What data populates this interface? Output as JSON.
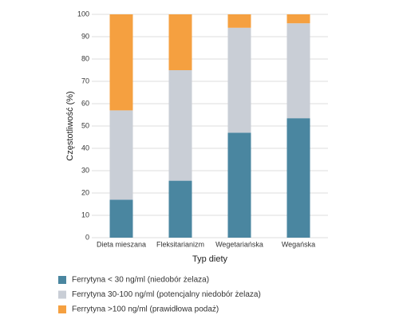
{
  "chart_data": {
    "type": "stacked-bar",
    "categories": [
      "Dieta mieszana",
      "Fleksitarianizm",
      "Wegetariańska",
      "Wegańska"
    ],
    "series": [
      {
        "name": "Ferrytyna < 30 ng/ml (niedobór żelaza)",
        "color": "#4a86a0",
        "values": [
          17,
          25.5,
          47,
          53.5
        ]
      },
      {
        "name": "Ferrytyna 30-100 ng/ml (potencjalny niedobór żelaza)",
        "color": "#c9ced6",
        "values": [
          40,
          49.5,
          47,
          42.5
        ]
      },
      {
        "name": "Ferrytyna >100 ng/ml (prawidłowa podaż)",
        "color": "#f5a040",
        "values": [
          43,
          25,
          6,
          4
        ]
      }
    ],
    "x_label": "Typ diety",
    "y_label": "Częstotliwość (%)",
    "ylim": [
      0,
      100
    ],
    "yticks": [
      0,
      10,
      20,
      30,
      40,
      50,
      60,
      70,
      80,
      90,
      100
    ],
    "grid": true
  }
}
